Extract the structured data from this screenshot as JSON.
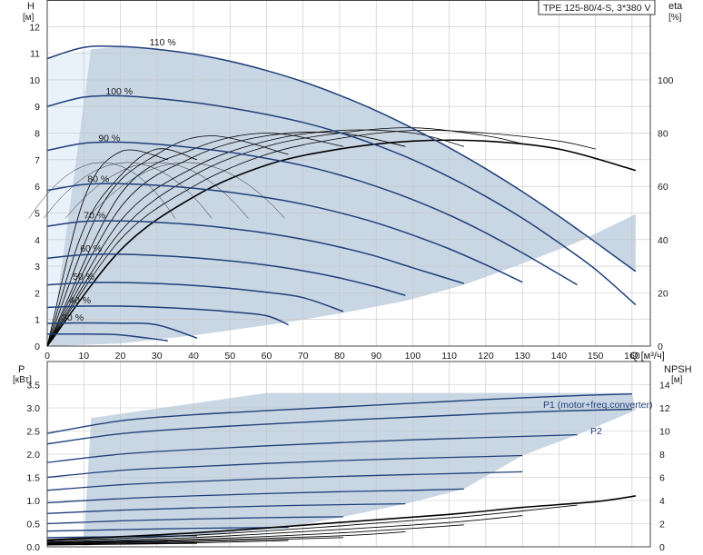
{
  "title_box": "TPE 125-80/4-S, 3*380 V",
  "colors": {
    "curve": "#1f3f7a",
    "envelope": "#c9d6e4",
    "light_region": "#e9f2fb",
    "grid": "#c4c4c4",
    "eff": "#000000"
  },
  "chart_data": [
    {
      "type": "line",
      "title": "",
      "xlabel": "Q [м³/ч]",
      "ylabel": "H [м]",
      "ylabel_right": "eta [%]",
      "xlim": [
        0,
        165
      ],
      "ylim": [
        0,
        13
      ],
      "ylim_right": [
        0,
        130
      ],
      "x_ticks": [
        0,
        10,
        20,
        30,
        40,
        50,
        60,
        70,
        80,
        90,
        100,
        110,
        120,
        130,
        140,
        150,
        160
      ],
      "y_ticks": [
        0,
        1,
        2,
        3,
        4,
        5,
        6,
        7,
        8,
        9,
        10,
        11,
        12
      ],
      "y_right_ticks": [
        0,
        20,
        40,
        60,
        80,
        100
      ],
      "grid": true,
      "series": [
        {
          "name": "110 %",
          "x": [
            0,
            10,
            20,
            30,
            40,
            50,
            60,
            70,
            80,
            90,
            100,
            110,
            120,
            130,
            140,
            150,
            161
          ],
          "y": [
            10.8,
            11.22,
            11.25,
            11.15,
            10.97,
            10.7,
            10.35,
            9.93,
            9.42,
            8.84,
            8.18,
            7.45,
            6.66,
            5.8,
            4.88,
            3.9,
            2.8
          ]
        },
        {
          "name": "100 %",
          "x": [
            0,
            10,
            20,
            30,
            40,
            50,
            60,
            70,
            80,
            90,
            100,
            110,
            120,
            130,
            140,
            150,
            161
          ],
          "y": [
            9.0,
            9.35,
            9.4,
            9.3,
            9.15,
            8.95,
            8.7,
            8.4,
            8.02,
            7.55,
            7.0,
            6.35,
            5.62,
            4.8,
            3.88,
            2.88,
            1.55
          ]
        },
        {
          "name": "90 %",
          "x": [
            0,
            10,
            20,
            30,
            40,
            50,
            60,
            70,
            80,
            90,
            100,
            110,
            120,
            130,
            145
          ],
          "y": [
            7.35,
            7.62,
            7.66,
            7.58,
            7.45,
            7.28,
            7.05,
            6.78,
            6.43,
            6.0,
            5.5,
            4.92,
            4.25,
            3.5,
            2.3
          ]
        },
        {
          "name": "80 %",
          "x": [
            0,
            10,
            20,
            30,
            40,
            50,
            60,
            70,
            80,
            90,
            100,
            110,
            120,
            130
          ],
          "y": [
            5.85,
            6.07,
            6.1,
            6.04,
            5.93,
            5.78,
            5.58,
            5.33,
            5.01,
            4.63,
            4.17,
            3.65,
            3.05,
            2.4
          ]
        },
        {
          "name": "70 %",
          "x": [
            0,
            10,
            20,
            30,
            40,
            50,
            60,
            70,
            80,
            90,
            100,
            114
          ],
          "y": [
            4.5,
            4.68,
            4.7,
            4.65,
            4.56,
            4.42,
            4.24,
            4.01,
            3.72,
            3.37,
            2.94,
            2.35
          ]
        },
        {
          "name": "60 %",
          "x": [
            0,
            10,
            20,
            30,
            40,
            50,
            60,
            70,
            80,
            90,
            98
          ],
          "y": [
            3.3,
            3.43,
            3.45,
            3.4,
            3.32,
            3.2,
            3.04,
            2.83,
            2.56,
            2.22,
            1.9
          ]
        },
        {
          "name": "50 %",
          "x": [
            0,
            10,
            20,
            30,
            40,
            50,
            60,
            70,
            81
          ],
          "y": [
            2.3,
            2.38,
            2.39,
            2.35,
            2.28,
            2.17,
            2.02,
            1.82,
            1.3
          ]
        },
        {
          "name": "40 %",
          "x": [
            0,
            10,
            20,
            30,
            40,
            50,
            60,
            66
          ],
          "y": [
            1.45,
            1.5,
            1.5,
            1.46,
            1.39,
            1.29,
            1.14,
            0.8
          ]
        },
        {
          "name": "30 %",
          "x": [
            0,
            10,
            20,
            30,
            41
          ],
          "y": [
            0.85,
            0.87,
            0.86,
            0.8,
            0.3
          ]
        },
        {
          "name": "",
          "x": [
            0,
            10,
            20,
            33
          ],
          "y": [
            0.45,
            0.45,
            0.42,
            0.2
          ]
        }
      ],
      "efficiency_eta_percent": [
        {
          "x": [
            0,
            20,
            40,
            60,
            80,
            100,
            120,
            140,
            161
          ],
          "y": [
            0,
            36,
            56,
            68,
            74,
            77,
            77,
            74,
            66
          ]
        },
        {
          "x": [
            0,
            20,
            40,
            60,
            80,
            100,
            120,
            140,
            150
          ],
          "y": [
            0,
            40,
            60,
            72,
            78,
            81,
            80,
            77,
            74
          ]
        },
        {
          "x": [
            0,
            20,
            40,
            60,
            80,
            100,
            120,
            130
          ],
          "y": [
            0,
            43,
            64,
            75,
            80,
            82,
            79,
            76
          ]
        },
        {
          "x": [
            0,
            20,
            40,
            60,
            80,
            100,
            114
          ],
          "y": [
            0,
            47,
            67,
            77,
            81,
            80,
            75
          ]
        },
        {
          "x": [
            0,
            20,
            40,
            60,
            80,
            98
          ],
          "y": [
            0,
            52,
            71,
            79,
            80,
            75
          ]
        },
        {
          "x": [
            0,
            20,
            40,
            60,
            81
          ],
          "y": [
            0,
            57,
            74,
            80,
            75
          ]
        },
        {
          "x": [
            0,
            15,
            30,
            45,
            66
          ],
          "y": [
            0,
            53,
            72,
            79,
            72
          ]
        },
        {
          "x": [
            0,
            10,
            20,
            30,
            41
          ],
          "y": [
            0,
            44,
            64,
            74,
            70
          ]
        },
        {
          "x": [
            0,
            10,
            20,
            33
          ],
          "y": [
            0,
            55,
            73,
            70
          ]
        }
      ],
      "speed_labels": [
        "110 %",
        "100 %",
        "90 %",
        "80 %",
        "70 %",
        "60 %",
        "50 %",
        "40 %",
        "30 %"
      ]
    },
    {
      "type": "line",
      "title": "",
      "xlabel": "",
      "ylabel": "P [кВт]",
      "ylabel_right": "NPSH [м]",
      "xlim": [
        0,
        165
      ],
      "ylim": [
        0,
        4
      ],
      "ylim_right": [
        0,
        16
      ],
      "y_ticks": [
        0.0,
        0.5,
        1.0,
        1.5,
        2.0,
        2.5,
        3.0,
        3.5
      ],
      "y_right_ticks": [
        0,
        2,
        4,
        6,
        8,
        10,
        12,
        14
      ],
      "grid": true,
      "series": [
        {
          "name": "P1 (motor+freq.converter)",
          "x": [
            0,
            20,
            40,
            60,
            80,
            100,
            120,
            140,
            160
          ],
          "y": [
            2.45,
            2.72,
            2.85,
            2.94,
            3.02,
            3.1,
            3.18,
            3.25,
            3.3
          ]
        },
        {
          "name": "P2",
          "x": [
            0,
            20,
            40,
            60,
            80,
            100,
            120,
            140,
            160
          ],
          "y": [
            2.22,
            2.44,
            2.56,
            2.65,
            2.73,
            2.8,
            2.87,
            2.93,
            2.97
          ]
        },
        {
          "name": "",
          "x": [
            0,
            20,
            40,
            60,
            80,
            100,
            120,
            145
          ],
          "y": [
            1.82,
            2.0,
            2.1,
            2.18,
            2.25,
            2.31,
            2.36,
            2.42
          ]
        },
        {
          "name": "",
          "x": [
            0,
            20,
            40,
            60,
            80,
            100,
            120,
            130
          ],
          "y": [
            1.5,
            1.65,
            1.73,
            1.8,
            1.86,
            1.91,
            1.95,
            1.97
          ]
        },
        {
          "name": "",
          "x": [
            0,
            20,
            40,
            60,
            80,
            100,
            120,
            130
          ],
          "y": [
            1.22,
            1.34,
            1.41,
            1.47,
            1.52,
            1.56,
            1.6,
            1.62
          ]
        },
        {
          "name": "",
          "x": [
            0,
            20,
            40,
            60,
            80,
            100,
            114
          ],
          "y": [
            0.95,
            1.04,
            1.1,
            1.15,
            1.19,
            1.22,
            1.25
          ]
        },
        {
          "name": "",
          "x": [
            0,
            20,
            40,
            60,
            80,
            98
          ],
          "y": [
            0.72,
            0.79,
            0.84,
            0.88,
            0.91,
            0.93
          ]
        },
        {
          "name": "",
          "x": [
            0,
            20,
            40,
            60,
            81
          ],
          "y": [
            0.5,
            0.56,
            0.6,
            0.63,
            0.65
          ]
        },
        {
          "name": "",
          "x": [
            0,
            20,
            40,
            66
          ],
          "y": [
            0.34,
            0.37,
            0.4,
            0.42
          ]
        },
        {
          "name": "",
          "x": [
            0,
            20,
            41
          ],
          "y": [
            0.2,
            0.22,
            0.24
          ]
        },
        {
          "name": "",
          "x": [
            0,
            20,
            33
          ],
          "y": [
            0.1,
            0.11,
            0.12
          ]
        }
      ],
      "npsh_m": [
        {
          "x": [
            0,
            40,
            80,
            110,
            130,
            150,
            161
          ],
          "y": [
            0.6,
            1.2,
            2.1,
            2.8,
            3.4,
            3.9,
            4.4
          ]
        },
        {
          "x": [
            0,
            40,
            80,
            110,
            130,
            145
          ],
          "y": [
            0.5,
            1.0,
            1.8,
            2.5,
            3.1,
            3.6
          ]
        },
        {
          "x": [
            0,
            40,
            80,
            110,
            130
          ],
          "y": [
            0.4,
            0.8,
            1.5,
            2.1,
            2.7
          ]
        },
        {
          "x": [
            0,
            40,
            80,
            114
          ],
          "y": [
            0.35,
            0.65,
            1.2,
            1.9
          ]
        },
        {
          "x": [
            0,
            40,
            80,
            98
          ],
          "y": [
            0.3,
            0.55,
            0.95,
            1.3
          ]
        },
        {
          "x": [
            0,
            40,
            81
          ],
          "y": [
            0.25,
            0.45,
            0.8
          ]
        },
        {
          "x": [
            0,
            40,
            66
          ],
          "y": [
            0.2,
            0.35,
            0.55
          ]
        },
        {
          "x": [
            0,
            41
          ],
          "y": [
            0.15,
            0.3
          ]
        }
      ]
    }
  ]
}
